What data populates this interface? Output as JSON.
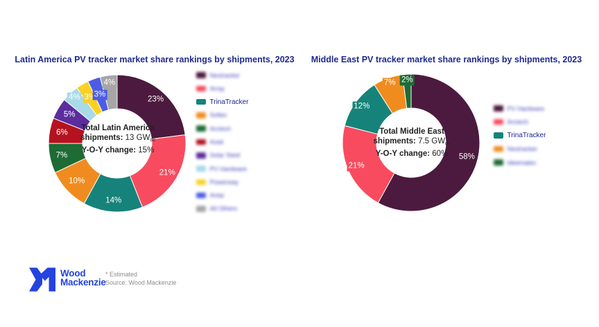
{
  "chart_data": [
    {
      "type": "donut",
      "title": "Latin America PV tracker market share rankings by shipments, 2023",
      "center": {
        "line1": "Total Latin America",
        "shipments_label": "shipments:",
        "shipments_value": " 13 GW",
        "shipments_sub": "dc",
        "yoy_label": "Y-O-Y change:",
        "yoy_value": " 15%"
      },
      "legend_position": "right",
      "segments": [
        {
          "label": "Nextracker",
          "value": 23,
          "color": "#4C1A3E",
          "blurred": true
        },
        {
          "label": "Array",
          "value": 21,
          "color": "#F84B5F",
          "blurred": true
        },
        {
          "label": "TrinaTracker",
          "value": 14,
          "color": "#16837A",
          "blurred": false
        },
        {
          "label": "Soltec",
          "value": 10,
          "color": "#F08C1F",
          "blurred": true
        },
        {
          "label": "Arctech",
          "value": 7,
          "color": "#1E6B35",
          "blurred": true
        },
        {
          "label": "Axial",
          "value": 6,
          "color": "#B5121F",
          "blurred": true
        },
        {
          "label": "Solar Steel",
          "value": 5,
          "color": "#5B2D9E",
          "blurred": true
        },
        {
          "label": "PV Hardware",
          "value": 4,
          "color": "#A9DAE8",
          "blurred": true
        },
        {
          "label": "Powerway",
          "value": 3,
          "color": "#FAD122",
          "blurred": true
        },
        {
          "label": "Antai",
          "value": 3,
          "color": "#4D5CE5",
          "blurred": true
        },
        {
          "label": "All Others",
          "value": 4,
          "color": "#A6A6A6",
          "blurred": true
        }
      ]
    },
    {
      "type": "donut",
      "title": "Middle East PV tracker market share rankings by shipments, 2023",
      "center": {
        "line1": "Total Middle East",
        "shipments_label": "shipments:",
        "shipments_value": " 7.5 GW",
        "shipments_sub": "dc",
        "yoy_label": "Y-O-Y change:",
        "yoy_value": " 60%"
      },
      "legend_position": "right",
      "segments": [
        {
          "label": "PV Hardware",
          "value": 58,
          "color": "#4C1A3E",
          "blurred": true
        },
        {
          "label": "Arctech",
          "value": 21,
          "color": "#F84B5F",
          "blurred": true
        },
        {
          "label": "TrinaTracker",
          "value": 12,
          "color": "#16837A",
          "blurred": false
        },
        {
          "label": "Nextracker",
          "value": 7,
          "color": "#F08C1F",
          "blurred": true
        },
        {
          "label": "Ideematec",
          "value": 2,
          "color": "#1E6B35",
          "blurred": true
        }
      ]
    }
  ],
  "footer": {
    "logo_line1": "Wood",
    "logo_line2": "Mackenzie",
    "estimated_note": "* Estimated",
    "source_note": "Source: Wood Mackenzie"
  }
}
